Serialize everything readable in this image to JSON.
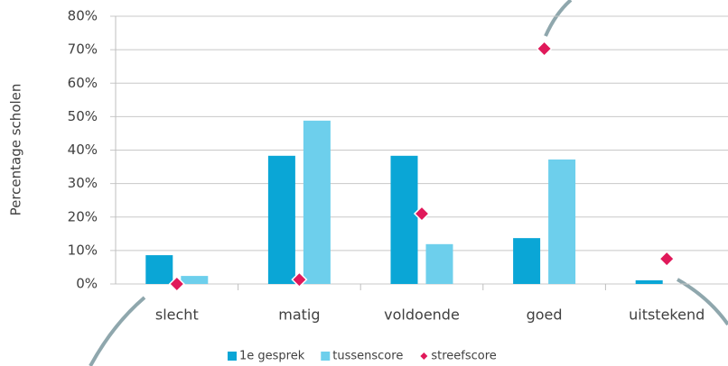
{
  "chart_data": {
    "type": "bar",
    "y_label": "Percentage scholen",
    "categories": [
      "slecht",
      "matig",
      "voldoende",
      "goed",
      "uitstekend"
    ],
    "series": [
      {
        "name": "1e gesprek",
        "color": "#0aa6d6",
        "values": [
          8.6,
          38.3,
          38.3,
          13.7,
          1.1
        ]
      },
      {
        "name": "tussenscore",
        "color": "#6dcfec",
        "values": [
          2.4,
          48.8,
          11.9,
          37.2,
          0
        ]
      },
      {
        "name": "streefscore",
        "color": "#e0195a",
        "marker": "diamond",
        "values": [
          0,
          1.3,
          21,
          70.3,
          7.5
        ]
      }
    ],
    "ylim": [
      0,
      80
    ],
    "yticks": [
      {
        "value": 0,
        "label": "0%"
      },
      {
        "value": 10,
        "label": "10%"
      },
      {
        "value": 20,
        "label": "20%"
      },
      {
        "value": 30,
        "label": "30%"
      },
      {
        "value": 40,
        "label": "40%"
      },
      {
        "value": 50,
        "label": "50%"
      },
      {
        "value": 60,
        "label": "60%"
      },
      {
        "value": 70,
        "label": "70%"
      },
      {
        "value": 80,
        "label": "80%"
      }
    ],
    "grid": true,
    "legend": "bottom"
  }
}
